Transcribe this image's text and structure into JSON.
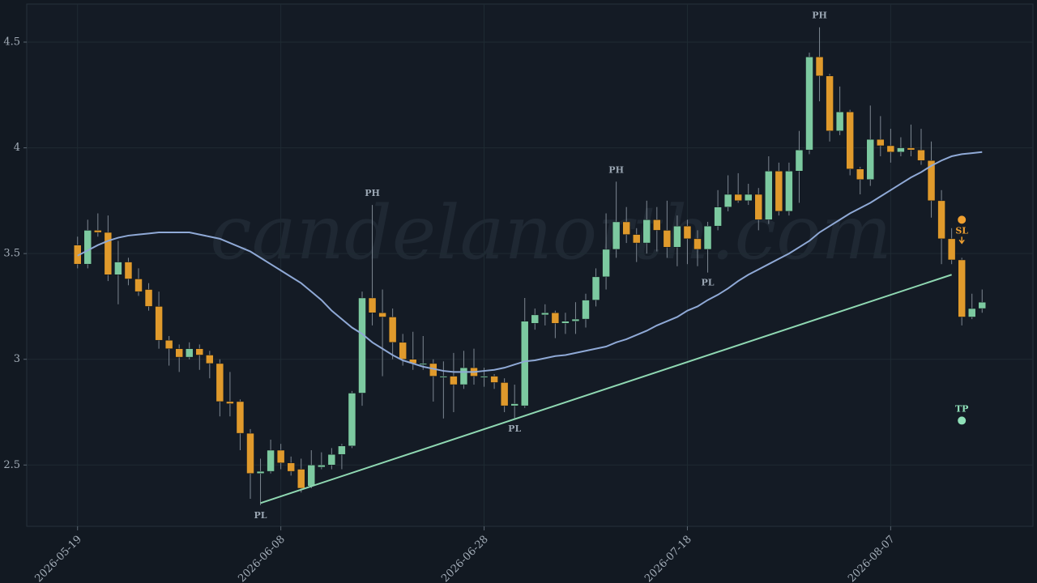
{
  "chart_data": {
    "type": "candlestick",
    "watermark": "candelanorth.com",
    "x": [
      "2026-05-19",
      "2026-05-20",
      "2026-05-21",
      "2026-05-22",
      "2026-05-23",
      "2026-05-24",
      "2026-05-25",
      "2026-05-26",
      "2026-05-27",
      "2026-05-28",
      "2026-05-29",
      "2026-05-30",
      "2026-05-31",
      "2026-06-01",
      "2026-06-02",
      "2026-06-03",
      "2026-06-04",
      "2026-06-05",
      "2026-06-06",
      "2026-06-07",
      "2026-06-08",
      "2026-06-09",
      "2026-06-10",
      "2026-06-11",
      "2026-06-12",
      "2026-06-13",
      "2026-06-14",
      "2026-06-15",
      "2026-06-16",
      "2026-06-17",
      "2026-06-18",
      "2026-06-19",
      "2026-06-20",
      "2026-06-21",
      "2026-06-22",
      "2026-06-23",
      "2026-06-24",
      "2026-06-25",
      "2026-06-26",
      "2026-06-27",
      "2026-06-28",
      "2026-06-29",
      "2026-06-30",
      "2026-07-01",
      "2026-07-02",
      "2026-07-03",
      "2026-07-04",
      "2026-07-05",
      "2026-07-06",
      "2026-07-07",
      "2026-07-08",
      "2026-07-09",
      "2026-07-10",
      "2026-07-11",
      "2026-07-12",
      "2026-07-13",
      "2026-07-14",
      "2026-07-15",
      "2026-07-16",
      "2026-07-17",
      "2026-07-18",
      "2026-07-19",
      "2026-07-20",
      "2026-07-21",
      "2026-07-22",
      "2026-07-23",
      "2026-07-24",
      "2026-07-25",
      "2026-07-26",
      "2026-07-27",
      "2026-07-28",
      "2026-07-29",
      "2026-07-30",
      "2026-07-31",
      "2026-08-01",
      "2026-08-02",
      "2026-08-03",
      "2026-08-04",
      "2026-08-05",
      "2026-08-06",
      "2026-08-07",
      "2026-08-08",
      "2026-08-09",
      "2026-08-10",
      "2026-08-11",
      "2026-08-12",
      "2026-08-13",
      "2026-08-14",
      "2026-08-15",
      "2026-08-16"
    ],
    "open": [
      3.54,
      3.45,
      3.61,
      3.6,
      3.4,
      3.46,
      3.38,
      3.33,
      3.25,
      3.09,
      3.05,
      3.01,
      3.05,
      3.02,
      2.98,
      2.8,
      2.8,
      2.65,
      2.46,
      2.47,
      2.57,
      2.51,
      2.48,
      2.4,
      2.49,
      2.5,
      2.55,
      2.59,
      2.84,
      3.29,
      3.22,
      3.2,
      3.08,
      3.0,
      2.98,
      2.98,
      2.92,
      2.92,
      2.88,
      2.96,
      2.92,
      2.92,
      2.89,
      2.78,
      2.78,
      3.17,
      3.21,
      3.22,
      3.17,
      3.18,
      3.19,
      3.28,
      3.39,
      3.52,
      3.65,
      3.59,
      3.55,
      3.66,
      3.61,
      3.53,
      3.63,
      3.57,
      3.52,
      3.63,
      3.72,
      3.78,
      3.75,
      3.78,
      3.66,
      3.89,
      3.7,
      3.89,
      3.99,
      4.43,
      4.34,
      4.08,
      4.17,
      3.9,
      3.85,
      4.04,
      4.01,
      3.98,
      4.0,
      3.99,
      3.94,
      3.75,
      3.57,
      3.47,
      3.2,
      3.24
    ],
    "high": [
      3.58,
      3.66,
      3.69,
      3.68,
      3.56,
      3.48,
      3.43,
      3.36,
      3.32,
      3.11,
      3.07,
      3.08,
      3.07,
      3.04,
      3.0,
      2.94,
      2.81,
      2.67,
      2.53,
      2.62,
      2.6,
      2.54,
      2.53,
      2.57,
      2.56,
      2.58,
      2.6,
      2.85,
      3.32,
      3.73,
      3.33,
      3.24,
      3.12,
      3.13,
      3.11,
      3.0,
      2.99,
      3.03,
      3.04,
      3.05,
      2.96,
      2.93,
      2.91,
      2.88,
      3.29,
      3.24,
      3.26,
      3.23,
      3.22,
      3.27,
      3.31,
      3.43,
      3.69,
      3.84,
      3.72,
      3.62,
      3.75,
      3.72,
      3.75,
      3.68,
      3.66,
      3.61,
      3.65,
      3.8,
      3.87,
      3.88,
      3.83,
      3.81,
      3.96,
      3.93,
      3.93,
      4.08,
      4.45,
      4.57,
      4.35,
      4.29,
      4.18,
      3.91,
      4.2,
      4.15,
      4.09,
      4.05,
      4.11,
      4.09,
      4.03,
      3.8,
      3.62,
      3.48,
      3.31,
      3.33
    ],
    "low": [
      3.43,
      3.43,
      3.58,
      3.37,
      3.26,
      3.35,
      3.3,
      3.23,
      3.05,
      2.97,
      2.94,
      3.0,
      2.95,
      2.91,
      2.73,
      2.73,
      2.57,
      2.34,
      2.31,
      2.46,
      2.48,
      2.45,
      2.37,
      2.39,
      2.48,
      2.48,
      2.48,
      2.58,
      2.78,
      3.16,
      2.92,
      3.0,
      2.97,
      2.95,
      2.95,
      2.8,
      2.72,
      2.75,
      2.86,
      2.88,
      2.87,
      2.86,
      2.75,
      2.72,
      2.77,
      3.14,
      3.16,
      3.1,
      3.12,
      3.12,
      3.15,
      3.25,
      3.33,
      3.48,
      3.55,
      3.46,
      3.5,
      3.51,
      3.48,
      3.44,
      3.45,
      3.44,
      3.41,
      3.61,
      3.7,
      3.74,
      3.73,
      3.61,
      3.64,
      3.68,
      3.68,
      3.74,
      3.97,
      4.22,
      4.03,
      4.06,
      3.87,
      3.78,
      3.82,
      3.96,
      3.93,
      3.96,
      3.96,
      3.92,
      3.67,
      3.45,
      3.45,
      3.16,
      3.19,
      3.22
    ],
    "close": [
      3.45,
      3.61,
      3.6,
      3.4,
      3.46,
      3.38,
      3.32,
      3.25,
      3.09,
      3.05,
      3.01,
      3.05,
      3.02,
      2.98,
      2.8,
      2.79,
      2.65,
      2.46,
      2.47,
      2.57,
      2.51,
      2.47,
      2.39,
      2.5,
      2.5,
      2.55,
      2.59,
      2.84,
      3.29,
      3.22,
      3.2,
      3.08,
      3.0,
      2.98,
      2.98,
      2.92,
      2.92,
      2.88,
      2.96,
      2.92,
      2.92,
      2.89,
      2.78,
      2.79,
      3.18,
      3.21,
      3.22,
      3.17,
      3.18,
      3.19,
      3.28,
      3.39,
      3.52,
      3.65,
      3.59,
      3.55,
      3.66,
      3.61,
      3.53,
      3.63,
      3.57,
      3.52,
      3.63,
      3.72,
      3.78,
      3.75,
      3.78,
      3.66,
      3.89,
      3.7,
      3.89,
      3.99,
      4.43,
      4.34,
      4.08,
      4.17,
      3.9,
      3.85,
      4.04,
      4.01,
      3.98,
      4.0,
      3.99,
      3.94,
      3.75,
      3.57,
      3.47,
      3.2,
      3.24,
      3.27
    ],
    "up_color": "#7cc9a0",
    "down_color": "#e09a2c",
    "moving_average": {
      "color": "#8fa9d6",
      "values": [
        3.49,
        3.515,
        3.54,
        3.56,
        3.575,
        3.585,
        3.59,
        3.595,
        3.6,
        3.6,
        3.6,
        3.6,
        3.59,
        3.58,
        3.57,
        3.55,
        3.53,
        3.51,
        3.48,
        3.45,
        3.42,
        3.39,
        3.36,
        3.32,
        3.28,
        3.23,
        3.19,
        3.15,
        3.12,
        3.08,
        3.05,
        3.02,
        2.995,
        2.98,
        2.965,
        2.955,
        2.945,
        2.94,
        2.94,
        2.94,
        2.945,
        2.95,
        2.96,
        2.975,
        2.99,
        2.995,
        3.005,
        3.015,
        3.02,
        3.03,
        3.04,
        3.05,
        3.06,
        3.08,
        3.095,
        3.115,
        3.135,
        3.16,
        3.18,
        3.2,
        3.23,
        3.25,
        3.28,
        3.305,
        3.335,
        3.37,
        3.4,
        3.425,
        3.45,
        3.475,
        3.5,
        3.53,
        3.56,
        3.6,
        3.63,
        3.66,
        3.69,
        3.715,
        3.74,
        3.77,
        3.8,
        3.83,
        3.86,
        3.885,
        3.915,
        3.94,
        3.96,
        3.97,
        3.975,
        3.98
      ]
    },
    "trendline": {
      "color": "#8fd8b2",
      "x": [
        "2026-06-06",
        "2026-08-13"
      ],
      "values": [
        2.32,
        3.4
      ]
    },
    "annotations": [
      {
        "label": "PL",
        "x": "2026-06-06",
        "at": "low"
      },
      {
        "label": "PH",
        "x": "2026-06-17",
        "at": "high"
      },
      {
        "label": "PL",
        "x": "2026-07-01",
        "at": "low"
      },
      {
        "label": "PH",
        "x": "2026-07-11",
        "at": "high"
      },
      {
        "label": "PL",
        "x": "2026-07-20",
        "at": "low"
      },
      {
        "label": "PH",
        "x": "2026-07-31",
        "at": "high"
      }
    ],
    "markers": [
      {
        "label": "SL",
        "x": "2026-08-14",
        "y": 3.66,
        "color": "#f0a030"
      },
      {
        "label": "TP",
        "x": "2026-08-14",
        "y": 2.71,
        "color": "#8fe0b8"
      }
    ],
    "xlim": [
      "2026-05-14",
      "2026-08-21"
    ],
    "xticks": [
      "2026-05-19",
      "2026-06-08",
      "2026-06-28",
      "2026-07-18",
      "2026-08-07"
    ],
    "ylim": [
      2.21,
      4.68
    ],
    "yticks": [
      2.5,
      3,
      3.5,
      4,
      4.5
    ],
    "grid": true
  }
}
